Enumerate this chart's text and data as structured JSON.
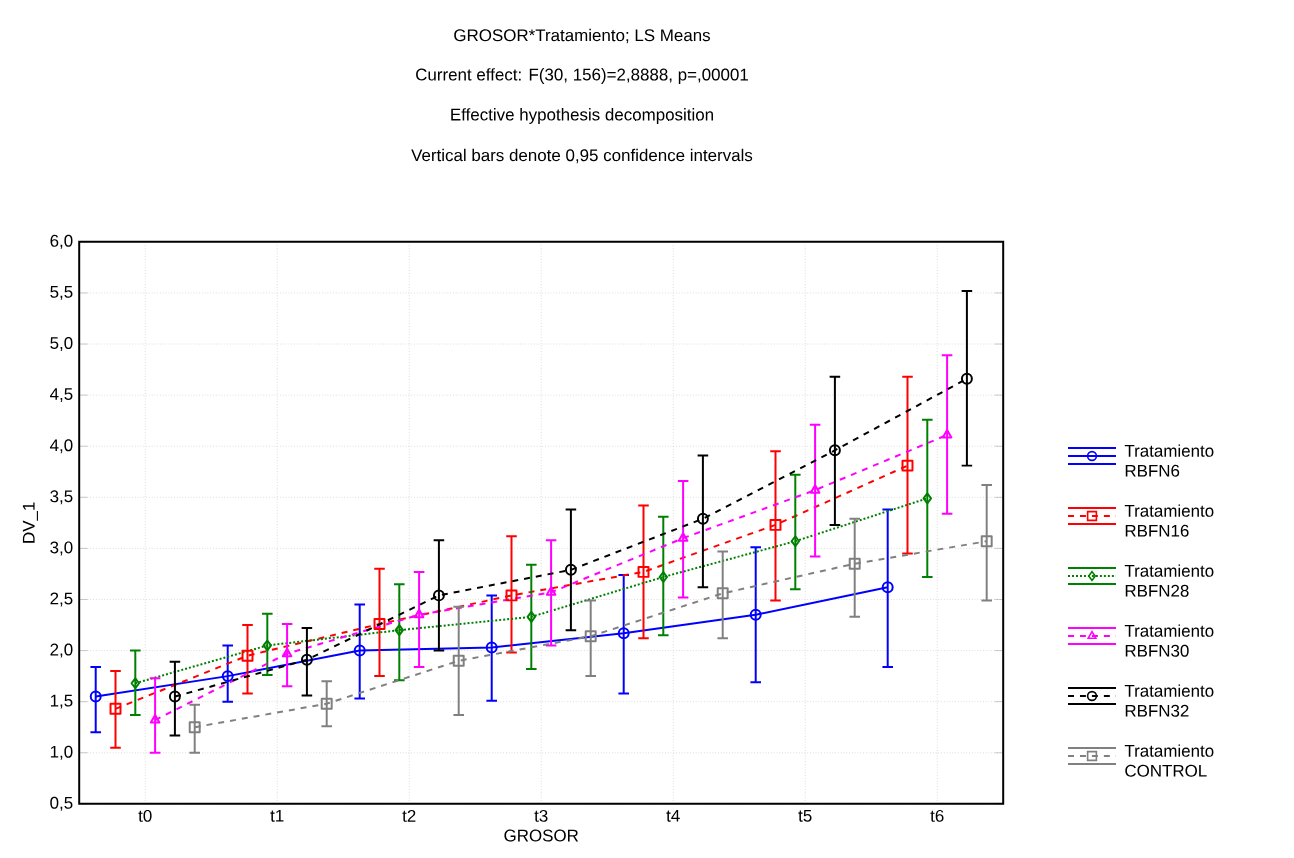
{
  "chart_data": {
    "type": "line",
    "title": "GROSOR*Tratamiento; LS Means",
    "subtitle": "Current effect: F(30, 156)=2,8888, p=,00001",
    "annotations": [
      "Effective hypothesis decomposition",
      "Vertical bars denote 0,95 confidence intervals"
    ],
    "xlabel": "GROSOR",
    "ylabel": "DV_1",
    "categories": [
      "t0",
      "t1",
      "t2",
      "t3",
      "t4",
      "t5",
      "t6"
    ],
    "ylim": [
      0.5,
      6.0
    ],
    "yticks": [
      {
        "value": 0.5,
        "label": "0,5"
      },
      {
        "value": 1.0,
        "label": "1,0"
      },
      {
        "value": 1.5,
        "label": "1,5"
      },
      {
        "value": 2.0,
        "label": "2,0"
      },
      {
        "value": 2.5,
        "label": "2,5"
      },
      {
        "value": 3.0,
        "label": "3,0"
      },
      {
        "value": 3.5,
        "label": "3,5"
      },
      {
        "value": 4.0,
        "label": "4,0"
      },
      {
        "value": 4.5,
        "label": "4,5"
      },
      {
        "value": 5.0,
        "label": "5,0"
      },
      {
        "value": 5.5,
        "label": "5,5"
      },
      {
        "value": 6.0,
        "label": "6,0"
      }
    ],
    "grid": true,
    "legend": "right",
    "series": [
      {
        "name": "Tratamiento RBFN6",
        "color": "#0000ff",
        "marker": "circle",
        "line_style": "solid",
        "values": [
          1.55,
          1.75,
          2.0,
          2.03,
          2.17,
          2.35,
          2.62
        ],
        "errors": [
          [
            1.2,
            1.84
          ],
          [
            1.5,
            2.05
          ],
          [
            1.53,
            2.45
          ],
          [
            1.51,
            2.54
          ],
          [
            1.58,
            2.74
          ],
          [
            1.69,
            3.01
          ],
          [
            1.84,
            3.38
          ]
        ]
      },
      {
        "name": "Tratamiento RBFN16",
        "color": "#ff0000",
        "marker": "square",
        "line_style": "dashed",
        "values": [
          1.43,
          1.95,
          2.26,
          2.54,
          2.77,
          3.23,
          3.81
        ],
        "errors": [
          [
            1.05,
            1.8
          ],
          [
            1.58,
            2.25
          ],
          [
            1.75,
            2.8
          ],
          [
            1.98,
            3.12
          ],
          [
            2.12,
            3.42
          ],
          [
            2.49,
            3.95
          ],
          [
            2.95,
            4.68
          ]
        ]
      },
      {
        "name": "Tratamiento RBFN28",
        "color": "#008000",
        "marker": "diamond",
        "line_style": "dotted",
        "values": [
          1.68,
          2.05,
          2.2,
          2.33,
          2.72,
          3.07,
          3.49
        ],
        "errors": [
          [
            1.37,
            2.0
          ],
          [
            1.76,
            2.36
          ],
          [
            1.71,
            2.65
          ],
          [
            1.82,
            2.84
          ],
          [
            2.15,
            3.31
          ],
          [
            2.6,
            3.72
          ],
          [
            2.72,
            4.26
          ]
        ]
      },
      {
        "name": "Tratamiento RBFN30",
        "color": "#ff00ff",
        "marker": "triangle",
        "line_style": "dashed",
        "values": [
          1.32,
          1.97,
          2.35,
          2.57,
          3.1,
          3.57,
          4.11
        ],
        "errors": [
          [
            1.0,
            1.73
          ],
          [
            1.65,
            2.26
          ],
          [
            1.84,
            2.77
          ],
          [
            2.05,
            3.08
          ],
          [
            2.52,
            3.66
          ],
          [
            2.92,
            4.21
          ],
          [
            3.34,
            4.89
          ]
        ]
      },
      {
        "name": "Tratamiento RBFN32",
        "color": "#000000",
        "marker": "circle",
        "line_style": "dashed",
        "values": [
          1.55,
          1.91,
          2.54,
          2.79,
          3.29,
          3.96,
          4.66
        ],
        "errors": [
          [
            1.17,
            1.89
          ],
          [
            1.56,
            2.22
          ],
          [
            2.0,
            3.08
          ],
          [
            2.2,
            3.38
          ],
          [
            2.62,
            3.91
          ],
          [
            3.23,
            4.68
          ],
          [
            3.81,
            5.52
          ]
        ]
      },
      {
        "name": "Tratamiento CONTROL",
        "color": "#808080",
        "marker": "square",
        "line_style": "dashed",
        "values": [
          1.25,
          1.48,
          1.9,
          2.14,
          2.56,
          2.85,
          3.07
        ],
        "errors": [
          [
            1.0,
            1.47
          ],
          [
            1.26,
            1.7
          ],
          [
            1.37,
            2.43
          ],
          [
            1.75,
            2.49
          ],
          [
            2.12,
            2.97
          ],
          [
            2.33,
            3.29
          ],
          [
            2.49,
            3.62
          ]
        ]
      }
    ]
  }
}
